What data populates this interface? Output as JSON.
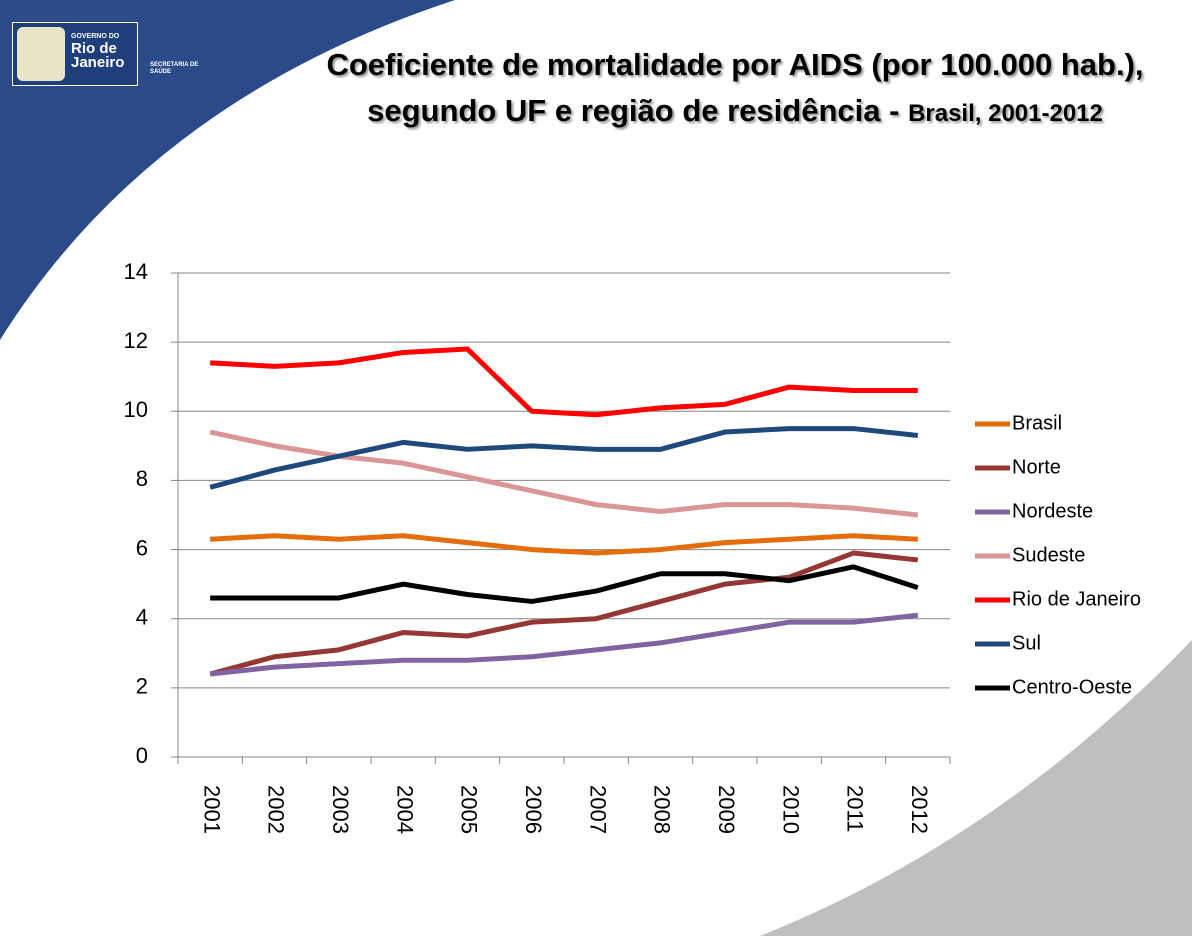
{
  "logo": {
    "government": "GOVERNO DO",
    "state_line1": "Rio de",
    "state_line2": "Janeiro",
    "department_line1": "SECRETARIA DE",
    "department_line2": "SAÚDE"
  },
  "chart_data": {
    "type": "line",
    "title": "Coeficiente de mortalidade por AIDS (por 100.000 hab.), segundo UF e região de residência -",
    "subtitle": "Brasil, 2001-2012",
    "categories": [
      "2001",
      "2002",
      "2003",
      "2004",
      "2005",
      "2006",
      "2007",
      "2008",
      "2009",
      "2010",
      "2011",
      "2012"
    ],
    "ylim": [
      0,
      14
    ],
    "yticks": [
      0,
      2,
      4,
      6,
      8,
      10,
      12,
      14
    ],
    "grid": true,
    "legend": "right",
    "series": [
      {
        "name": "Brasil",
        "color": "#e46c0a",
        "values": [
          6.3,
          6.4,
          6.3,
          6.4,
          6.2,
          6.0,
          5.9,
          6.0,
          6.2,
          6.3,
          6.4,
          6.3
        ]
      },
      {
        "name": "Norte",
        "color": "#953735",
        "values": [
          2.4,
          2.9,
          3.1,
          3.6,
          3.5,
          3.9,
          4.0,
          4.5,
          5.0,
          5.2,
          5.9,
          5.7
        ]
      },
      {
        "name": "Nordeste",
        "color": "#8064a2",
        "values": [
          2.4,
          2.6,
          2.7,
          2.8,
          2.8,
          2.9,
          3.1,
          3.3,
          3.6,
          3.9,
          3.9,
          4.1
        ]
      },
      {
        "name": "Sudeste",
        "color": "#d99694",
        "values": [
          9.4,
          9.0,
          8.7,
          8.5,
          8.1,
          7.7,
          7.3,
          7.1,
          7.3,
          7.3,
          7.2,
          7.0
        ]
      },
      {
        "name": "Rio de Janeiro",
        "color": "#ff0000",
        "values": [
          11.4,
          11.3,
          11.4,
          11.7,
          11.8,
          10.0,
          9.9,
          10.1,
          10.2,
          10.7,
          10.6,
          10.6
        ]
      },
      {
        "name": "Sul",
        "color": "#1f497d",
        "values": [
          7.8,
          8.3,
          8.7,
          9.1,
          8.9,
          9.0,
          8.9,
          8.9,
          9.4,
          9.5,
          9.5,
          9.3
        ]
      },
      {
        "name": "Centro-Oeste",
        "color": "#000000",
        "values": [
          4.6,
          4.6,
          4.6,
          5.0,
          4.7,
          4.5,
          4.8,
          5.3,
          5.3,
          5.1,
          5.5,
          4.9
        ]
      }
    ]
  }
}
